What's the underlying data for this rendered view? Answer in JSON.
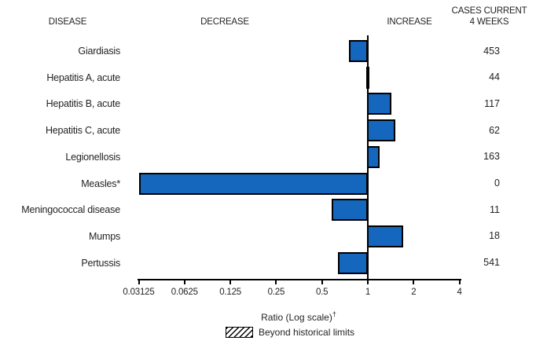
{
  "header": {
    "disease": "DISEASE",
    "decrease": "DECREASE",
    "increase": "INCREASE",
    "cases_line1": "CASES CURRENT",
    "cases_line2": "4 WEEKS"
  },
  "chart_data": {
    "type": "bar",
    "orientation": "horizontal",
    "scale": "log2",
    "baseline_ratio": 1,
    "xlim": [
      0.03125,
      4
    ],
    "x_tick_labels": [
      "0.03125",
      "0.0625",
      "0.125",
      "0.25",
      "0.5",
      "1",
      "2",
      "4"
    ],
    "xlabel": "Ratio (Log scale)",
    "xlabel_footnote_marker": "†",
    "rows": [
      {
        "disease": "Giardiasis",
        "ratio": 0.75,
        "cases": "453",
        "beyond_historical_limits": false
      },
      {
        "disease": "Hepatitis A, acute",
        "ratio": 0.98,
        "cases": "44",
        "beyond_historical_limits": false
      },
      {
        "disease": "Hepatitis B, acute",
        "ratio": 1.41,
        "cases": "117",
        "beyond_historical_limits": false
      },
      {
        "disease": "Hepatitis C, acute",
        "ratio": 1.5,
        "cases": "62",
        "beyond_historical_limits": false
      },
      {
        "disease": "Legionellosis",
        "ratio": 1.18,
        "cases": "163",
        "beyond_historical_limits": false
      },
      {
        "disease": "Measles*",
        "ratio": 0.03125,
        "cases": "0",
        "beyond_historical_limits": false
      },
      {
        "disease": "Meningococcal disease",
        "ratio": 0.58,
        "cases": "11",
        "beyond_historical_limits": false
      },
      {
        "disease": "Mumps",
        "ratio": 1.69,
        "cases": "18",
        "beyond_historical_limits": false
      },
      {
        "disease": "Pertussis",
        "ratio": 0.64,
        "cases": "541",
        "beyond_historical_limits": false
      }
    ],
    "legend": {
      "label": "Beyond historical limits",
      "swatch_style": "diagonal-hatch"
    },
    "colors": {
      "bar_fill": "#1467bd",
      "bar_border": "#000000",
      "text": "#231f20",
      "axis": "#000000"
    }
  }
}
